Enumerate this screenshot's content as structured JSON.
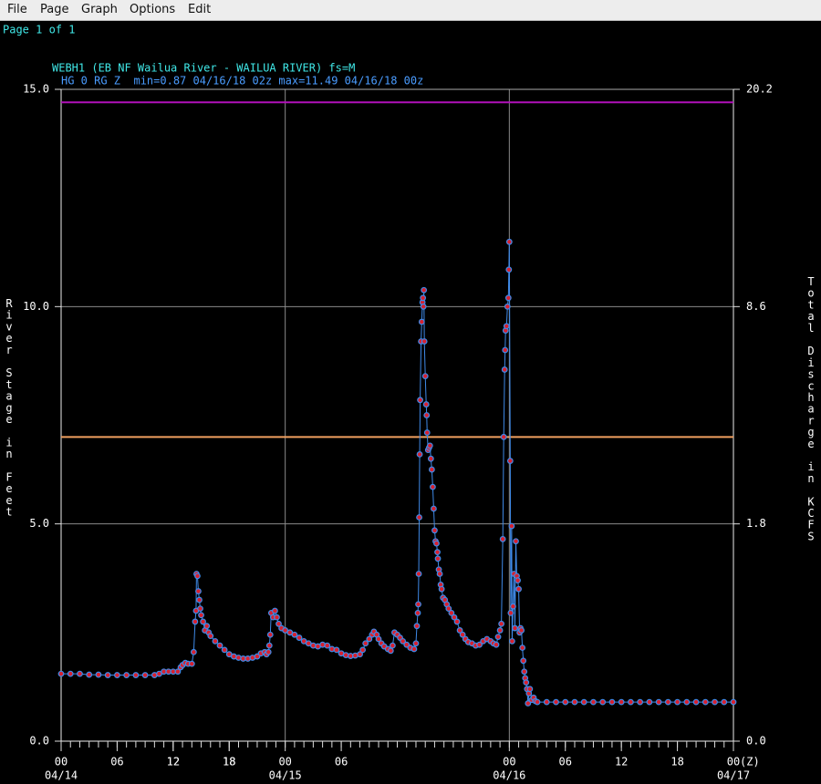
{
  "menu": [
    "File",
    "Page",
    "Graph",
    "Options",
    "Edit"
  ],
  "page_label": "Page 1 of 1",
  "chart_data": {
    "type": "line",
    "title": "WEBH1 (EB NF Wailua River - WAILUA RIVER) fs=M",
    "subtitle": "HG 0 RG Z  min=0.87 04/16/18 02z max=11.49 04/16/18 00z",
    "ylabel": "River Stage in Feet",
    "y2label": "Total Discharge in KCFS",
    "xlim": [
      0,
      72
    ],
    "ylim": [
      0,
      15
    ],
    "y2lim": [
      0,
      20.2
    ],
    "yticks": [
      {
        "value": 0,
        "label": "0.0"
      },
      {
        "value": 5,
        "label": "5.0"
      },
      {
        "value": 10,
        "label": "10.0"
      },
      {
        "value": 15,
        "label": "15.0"
      }
    ],
    "y2ticks": [
      {
        "value": 0,
        "label": "0.0"
      },
      1.8,
      8.6,
      20.2
    ],
    "xticks": [
      {
        "value": 0,
        "label": "00"
      },
      {
        "value": 6,
        "label": "06"
      },
      12,
      18,
      {
        "value": 24,
        "label": "00"
      },
      {
        "value": 30,
        "label": "06"
      },
      12,
      18,
      {
        "value": 48,
        "label": "00"
      },
      {
        "value": 54,
        "label": "06"
      },
      {
        "value": 60,
        "label": "12"
      },
      {
        "value": 66,
        "label": "18"
      },
      {
        "value": 72,
        "label": "00"
      }
    ],
    "x_unit_label": "(Z)",
    "date_labels": [
      {
        "value": 0,
        "label": "04/14"
      },
      {
        "value": 24,
        "label": "04/15"
      },
      {
        "value": 48,
        "label": "04/16"
      },
      {
        "value": 72,
        "label": "04/17"
      }
    ],
    "xminorticks": [
      0,
      1,
      2,
      3,
      4,
      5,
      6,
      7,
      8,
      9,
      10,
      11,
      12,
      13,
      14,
      15,
      16,
      17,
      18,
      19,
      20,
      21,
      22,
      23,
      24,
      25,
      26,
      27,
      28,
      29,
      30,
      31,
      32,
      33,
      34,
      35,
      36,
      37,
      38,
      39,
      40,
      41,
      42,
      43,
      44,
      45,
      46,
      47,
      48,
      49,
      50,
      51,
      52,
      53,
      54,
      55,
      56,
      57,
      58,
      59,
      60,
      61,
      62,
      63,
      64,
      65,
      66,
      67,
      68,
      69,
      70,
      71,
      72
    ],
    "vgrid": [
      24,
      48
    ],
    "grid": true,
    "thresholds": [
      {
        "value": 14.7,
        "color": "#b010b8"
      },
      {
        "value": 7.0,
        "color": "#f0a060"
      }
    ],
    "x": [
      0,
      1,
      2,
      3,
      4,
      5,
      6,
      7,
      8,
      9,
      10,
      10.5,
      11,
      11.5,
      12,
      12.5,
      12.8,
      13,
      13.3,
      13.6,
      14,
      14.2,
      14.35,
      14.45,
      14.5,
      14.6,
      14.7,
      14.8,
      14.9,
      15,
      15.2,
      15.4,
      15.6,
      15.8,
      16,
      16.5,
      17,
      17.5,
      18,
      18.5,
      19,
      19.5,
      20,
      20.5,
      21,
      21.4,
      21.8,
      22,
      22.2,
      22.3,
      22.4,
      22.5,
      22.7,
      22.9,
      23.1,
      23.3,
      23.6,
      24,
      24.5,
      25,
      25.5,
      26,
      26.5,
      27,
      27.5,
      28,
      28.5,
      29,
      29.5,
      30,
      30.5,
      31,
      31.5,
      32,
      32.3,
      32.6,
      33,
      33.3,
      33.5,
      33.8,
      34,
      34.3,
      34.6,
      35,
      35.3,
      35.5,
      35.7,
      36,
      36.3,
      36.6,
      37,
      37.4,
      37.8,
      38,
      38.1,
      38.2,
      38.25,
      38.3,
      38.35,
      38.4,
      38.45,
      38.55,
      38.62,
      38.7,
      38.75,
      38.8,
      38.85,
      38.9,
      39,
      39.1,
      39.15,
      39.2,
      39.3,
      39.4,
      39.5,
      39.6,
      39.7,
      39.8,
      39.9,
      40,
      40.1,
      40.2,
      40.3,
      40.35,
      40.45,
      40.55,
      40.65,
      40.75,
      40.9,
      41.1,
      41.3,
      41.5,
      41.8,
      42.1,
      42.4,
      42.7,
      43,
      43.3,
      43.6,
      44,
      44.4,
      44.8,
      45.2,
      45.6,
      46,
      46.3,
      46.6,
      46.8,
      47,
      47.15,
      47.3,
      47.4,
      47.5,
      47.55,
      47.6,
      47.7,
      47.8,
      47.9,
      47.95,
      48,
      48.1,
      48.15,
      48.25,
      48.3,
      48.4,
      48.5,
      48.6,
      48.7,
      48.8,
      48.9,
      49,
      49.1,
      49.2,
      49.3,
      49.4,
      49.5,
      49.6,
      49.7,
      49.8,
      49.9,
      50,
      50.1,
      50.2,
      50.4,
      50.6,
      50.8,
      51,
      52,
      53,
      54,
      55,
      56,
      57,
      58,
      59,
      60,
      61,
      62,
      63,
      64,
      65,
      66,
      67,
      68,
      69,
      70,
      71,
      72
    ],
    "series": [
      {
        "name": "HG 0 RG Z",
        "color": "#3f8ae8",
        "marker_color": "#d8202e",
        "values": [
          1.55,
          1.55,
          1.55,
          1.53,
          1.53,
          1.52,
          1.52,
          1.52,
          1.52,
          1.52,
          1.52,
          1.55,
          1.6,
          1.6,
          1.6,
          1.6,
          1.7,
          1.75,
          1.8,
          1.78,
          1.78,
          2.05,
          2.75,
          3.0,
          3.85,
          3.8,
          3.45,
          3.25,
          3.05,
          2.9,
          2.75,
          2.55,
          2.65,
          2.5,
          2.42,
          2.3,
          2.2,
          2.1,
          2.0,
          1.95,
          1.92,
          1.9,
          1.9,
          1.92,
          1.95,
          2.02,
          2.05,
          2.0,
          2.05,
          2.2,
          2.45,
          2.95,
          2.85,
          3.0,
          2.85,
          2.7,
          2.6,
          2.55,
          2.5,
          2.45,
          2.38,
          2.3,
          2.25,
          2.2,
          2.18,
          2.22,
          2.2,
          2.12,
          2.1,
          2.02,
          1.98,
          1.96,
          1.97,
          2.0,
          2.1,
          2.25,
          2.35,
          2.45,
          2.52,
          2.45,
          2.35,
          2.25,
          2.18,
          2.12,
          2.08,
          2.2,
          2.5,
          2.45,
          2.38,
          2.3,
          2.22,
          2.15,
          2.12,
          2.25,
          2.65,
          2.95,
          3.15,
          3.85,
          5.15,
          6.6,
          7.85,
          9.2,
          9.65,
          10.1,
          10.2,
          10.0,
          10.38,
          9.2,
          8.4,
          7.75,
          7.5,
          7.1,
          6.7,
          6.75,
          6.8,
          6.5,
          6.25,
          5.85,
          5.35,
          4.85,
          4.6,
          4.55,
          4.35,
          4.2,
          3.95,
          3.85,
          3.6,
          3.5,
          3.3,
          3.25,
          3.15,
          3.05,
          2.95,
          2.85,
          2.75,
          2.55,
          2.45,
          2.35,
          2.28,
          2.25,
          2.2,
          2.22,
          2.3,
          2.35,
          2.3,
          2.25,
          2.22,
          2.4,
          2.55,
          2.7,
          4.65,
          7.0,
          8.55,
          9.0,
          9.45,
          9.55,
          10.0,
          10.2,
          10.85,
          11.49,
          6.45,
          2.95,
          4.95,
          2.3,
          3.1,
          3.85,
          2.6,
          4.6,
          3.8,
          3.7,
          3.5,
          2.5,
          2.6,
          2.55,
          2.15,
          1.85,
          1.6,
          1.45,
          1.35,
          1.2,
          0.87,
          1.1,
          1.2,
          0.95,
          1.0,
          0.92,
          0.9,
          0.9,
          0.9,
          0.9,
          0.9,
          0.9,
          0.9,
          0.9,
          0.9,
          0.9,
          0.9,
          0.9,
          0.9,
          0.9,
          0.9,
          0.9,
          0.9,
          0.9,
          0.9,
          0.9,
          0.9,
          0.9
        ]
      }
    ]
  }
}
